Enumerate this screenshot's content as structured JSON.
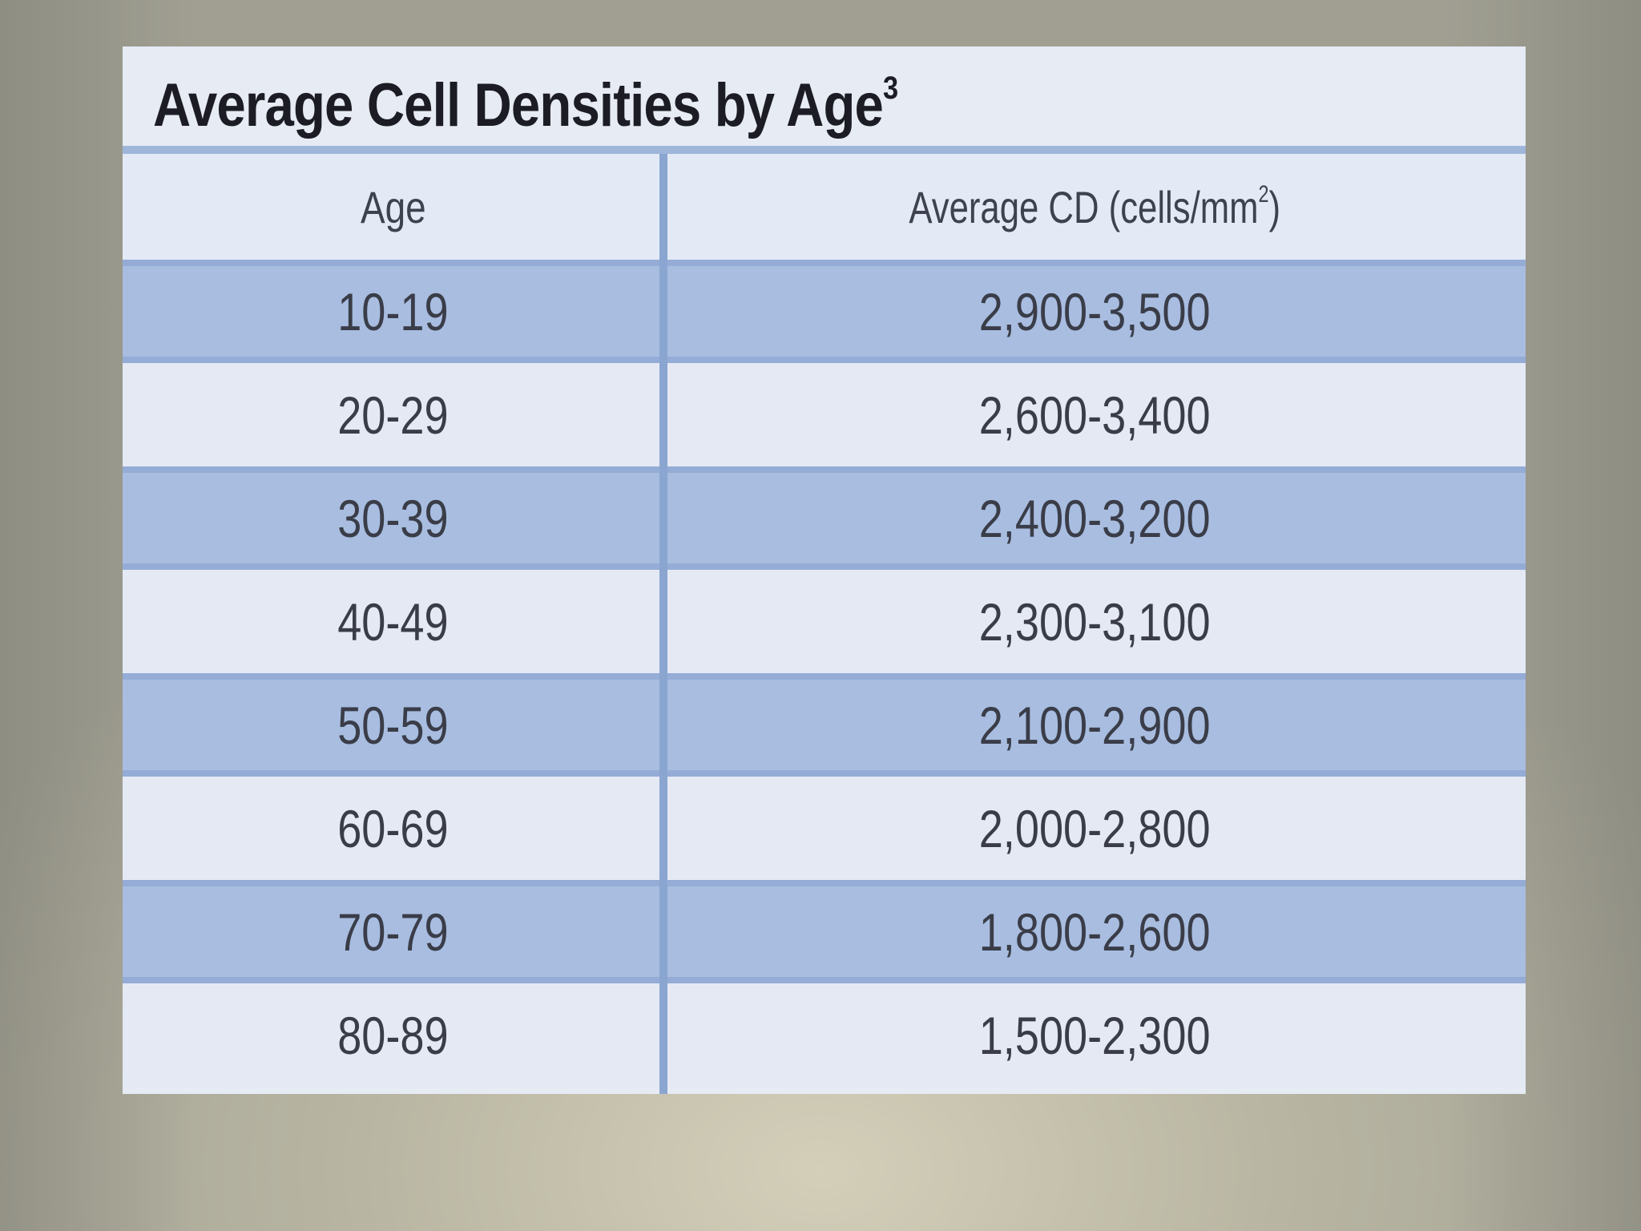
{
  "table": {
    "title": "Average Cell Densities by Age",
    "title_superscript": "3",
    "header": {
      "age": "Age",
      "cd": "Average CD (cells/mm",
      "cd_superscript": "2",
      "cd_close": ")"
    },
    "rows": [
      {
        "age": "10-19",
        "cd": "2,900-3,500"
      },
      {
        "age": "20-29",
        "cd": "2,600-3,400"
      },
      {
        "age": "30-39",
        "cd": "2,400-3,200"
      },
      {
        "age": "40-49",
        "cd": "2,300-3,100"
      },
      {
        "age": "50-59",
        "cd": "2,100-2,900"
      },
      {
        "age": "60-69",
        "cd": "2,000-2,800"
      },
      {
        "age": "70-79",
        "cd": "1,800-2,600"
      },
      {
        "age": "80-89",
        "cd": "1,500-2,300"
      }
    ]
  },
  "colors": {
    "shaded_row": "#a8bde0",
    "light_row": "#e4e9f4",
    "divider": "#8aa6d0",
    "title_text": "#1c1c24"
  }
}
